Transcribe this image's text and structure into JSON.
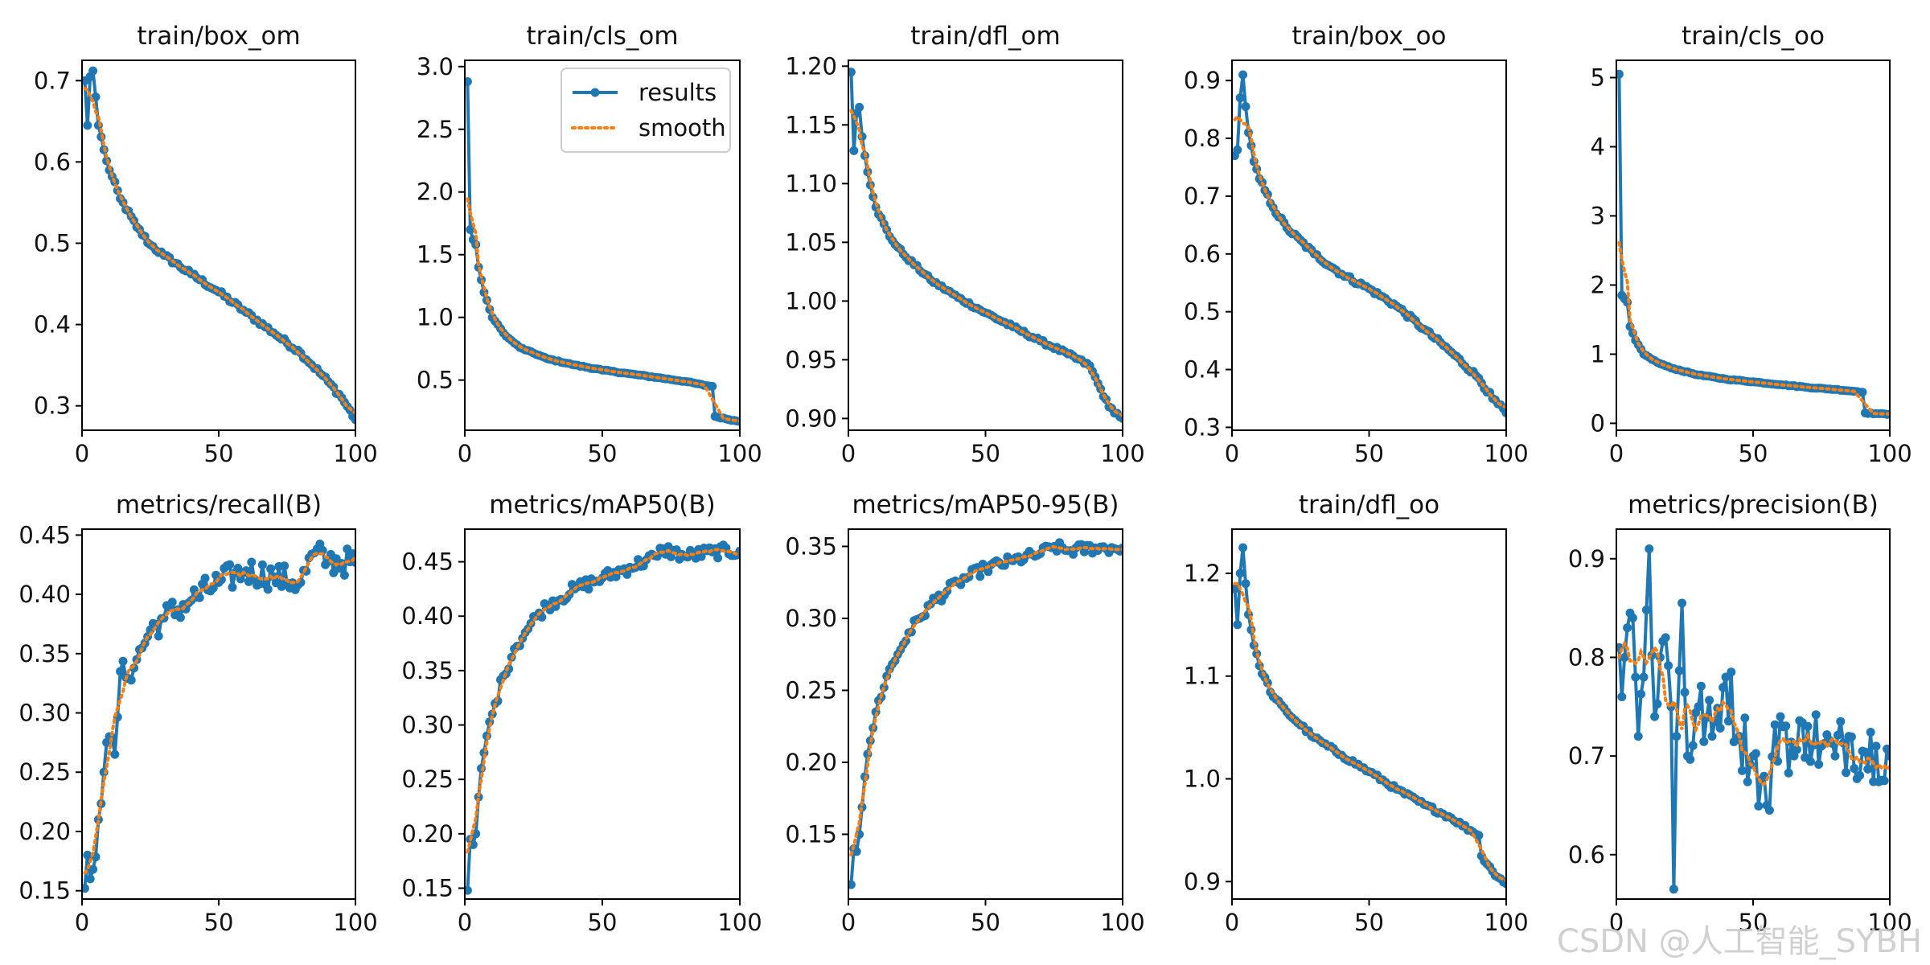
{
  "figure": {
    "legend_labels": {
      "results": "results",
      "smooth": "smooth"
    },
    "colors": {
      "results": "#1f77b4",
      "smooth": "#ff7f0e"
    },
    "watermark": "CSDN @人工智能_SYBH"
  },
  "chart_data": [
    {
      "type": "line",
      "title": "train/box_om",
      "xlim": [
        0,
        100
      ],
      "ylim": [
        0.27,
        0.725
      ],
      "xticks": [
        0,
        50,
        100
      ],
      "yticks": [
        0.3,
        0.4,
        0.5,
        0.6,
        0.7
      ],
      "ytick_labels": [
        "0.3",
        "0.4",
        "0.5",
        "0.6",
        "0.7"
      ],
      "legend": false,
      "kp": [
        [
          1,
          0.7
        ],
        [
          2,
          0.645
        ],
        [
          3,
          0.705
        ],
        [
          4,
          0.712
        ],
        [
          5,
          0.68
        ],
        [
          6,
          0.645
        ],
        [
          8,
          0.615
        ],
        [
          10,
          0.59
        ],
        [
          14,
          0.555
        ],
        [
          20,
          0.52
        ],
        [
          25,
          0.498
        ],
        [
          30,
          0.485
        ],
        [
          40,
          0.462
        ],
        [
          50,
          0.44
        ],
        [
          60,
          0.415
        ],
        [
          70,
          0.39
        ],
        [
          80,
          0.365
        ],
        [
          90,
          0.33
        ],
        [
          95,
          0.31
        ],
        [
          100,
          0.283
        ]
      ],
      "noise": 0.003
    },
    {
      "type": "line",
      "title": "train/cls_om",
      "xlim": [
        0,
        100
      ],
      "ylim": [
        0.1,
        3.05
      ],
      "xticks": [
        0,
        50,
        100
      ],
      "yticks": [
        0.5,
        1.0,
        1.5,
        2.0,
        2.5,
        3.0
      ],
      "ytick_labels": [
        "0.5",
        "1.0",
        "1.5",
        "2.0",
        "2.5",
        "3.0"
      ],
      "legend": true,
      "kp": [
        [
          1,
          2.88
        ],
        [
          2,
          1.7
        ],
        [
          3,
          1.62
        ],
        [
          4,
          1.58
        ],
        [
          5,
          1.4
        ],
        [
          7,
          1.2
        ],
        [
          10,
          1.0
        ],
        [
          15,
          0.85
        ],
        [
          20,
          0.76
        ],
        [
          30,
          0.67
        ],
        [
          40,
          0.62
        ],
        [
          50,
          0.58
        ],
        [
          60,
          0.55
        ],
        [
          70,
          0.52
        ],
        [
          80,
          0.49
        ],
        [
          88,
          0.455
        ],
        [
          90,
          0.45
        ],
        [
          91,
          0.21
        ],
        [
          95,
          0.19
        ],
        [
          100,
          0.17
        ]
      ],
      "noise": 0.004
    },
    {
      "type": "line",
      "title": "train/dfl_om",
      "xlim": [
        0,
        100
      ],
      "ylim": [
        0.89,
        1.205
      ],
      "xticks": [
        0,
        50,
        100
      ],
      "yticks": [
        0.9,
        0.95,
        1.0,
        1.05,
        1.1,
        1.15,
        1.2
      ],
      "ytick_labels": [
        "0.90",
        "0.95",
        "1.00",
        "1.05",
        "1.10",
        "1.15",
        "1.20"
      ],
      "legend": false,
      "kp": [
        [
          1,
          1.195
        ],
        [
          2,
          1.128
        ],
        [
          3,
          1.16
        ],
        [
          4,
          1.165
        ],
        [
          5,
          1.14
        ],
        [
          7,
          1.11
        ],
        [
          10,
          1.08
        ],
        [
          15,
          1.055
        ],
        [
          20,
          1.04
        ],
        [
          30,
          1.018
        ],
        [
          40,
          1.003
        ],
        [
          50,
          0.99
        ],
        [
          60,
          0.978
        ],
        [
          70,
          0.966
        ],
        [
          80,
          0.955
        ],
        [
          88,
          0.945
        ],
        [
          91,
          0.93
        ],
        [
          95,
          0.91
        ],
        [
          100,
          0.9
        ]
      ],
      "noise": 0.0015
    },
    {
      "type": "line",
      "title": "train/box_oo",
      "xlim": [
        0,
        100
      ],
      "ylim": [
        0.295,
        0.935
      ],
      "xticks": [
        0,
        50,
        100
      ],
      "yticks": [
        0.3,
        0.4,
        0.5,
        0.6,
        0.7,
        0.8,
        0.9
      ],
      "ytick_labels": [
        "0.3",
        "0.4",
        "0.5",
        "0.6",
        "0.7",
        "0.8",
        "0.9"
      ],
      "legend": false,
      "kp": [
        [
          1,
          0.77
        ],
        [
          2,
          0.78
        ],
        [
          3,
          0.87
        ],
        [
          4,
          0.91
        ],
        [
          5,
          0.855
        ],
        [
          6,
          0.81
        ],
        [
          8,
          0.76
        ],
        [
          10,
          0.73
        ],
        [
          15,
          0.68
        ],
        [
          20,
          0.645
        ],
        [
          30,
          0.6
        ],
        [
          40,
          0.565
        ],
        [
          50,
          0.54
        ],
        [
          60,
          0.51
        ],
        [
          70,
          0.47
        ],
        [
          80,
          0.43
        ],
        [
          90,
          0.385
        ],
        [
          95,
          0.35
        ],
        [
          100,
          0.325
        ]
      ],
      "noise": 0.004
    },
    {
      "type": "line",
      "title": "train/cls_oo",
      "xlim": [
        0,
        100
      ],
      "ylim": [
        -0.1,
        5.25
      ],
      "xticks": [
        0,
        50,
        100
      ],
      "yticks": [
        0,
        1,
        2,
        3,
        4,
        5
      ],
      "ytick_labels": [
        "0",
        "1",
        "2",
        "3",
        "4",
        "5"
      ],
      "legend": false,
      "kp": [
        [
          1,
          5.05
        ],
        [
          2,
          1.85
        ],
        [
          3,
          1.8
        ],
        [
          4,
          1.75
        ],
        [
          5,
          1.4
        ],
        [
          7,
          1.2
        ],
        [
          10,
          1.0
        ],
        [
          15,
          0.88
        ],
        [
          20,
          0.8
        ],
        [
          30,
          0.7
        ],
        [
          40,
          0.64
        ],
        [
          50,
          0.6
        ],
        [
          60,
          0.56
        ],
        [
          70,
          0.52
        ],
        [
          80,
          0.49
        ],
        [
          88,
          0.46
        ],
        [
          90,
          0.45
        ],
        [
          91,
          0.15
        ],
        [
          95,
          0.14
        ],
        [
          100,
          0.13
        ]
      ],
      "noise": 0.006
    },
    {
      "type": "line",
      "title": "metrics/recall(B)",
      "xlim": [
        0,
        100
      ],
      "ylim": [
        0.143,
        0.455
      ],
      "xticks": [
        0,
        50,
        100
      ],
      "yticks": [
        0.15,
        0.2,
        0.25,
        0.3,
        0.35,
        0.4,
        0.45
      ],
      "ytick_labels": [
        "0.15",
        "0.20",
        "0.25",
        "0.30",
        "0.35",
        "0.40",
        "0.45"
      ],
      "legend": false,
      "kp": [
        [
          1,
          0.152
        ],
        [
          2,
          0.18
        ],
        [
          3,
          0.16
        ],
        [
          4,
          0.168
        ],
        [
          6,
          0.21
        ],
        [
          8,
          0.25
        ],
        [
          10,
          0.28
        ],
        [
          12,
          0.265
        ],
        [
          14,
          0.335
        ],
        [
          16,
          0.33
        ],
        [
          20,
          0.345
        ],
        [
          25,
          0.37
        ],
        [
          30,
          0.38
        ],
        [
          40,
          0.395
        ],
        [
          50,
          0.41
        ],
        [
          60,
          0.42
        ],
        [
          70,
          0.415
        ],
        [
          80,
          0.41
        ],
        [
          85,
          0.435
        ],
        [
          90,
          0.428
        ],
        [
          100,
          0.427
        ]
      ],
      "noise": 0.012
    },
    {
      "type": "line",
      "title": "metrics/mAP50(B)",
      "xlim": [
        0,
        100
      ],
      "ylim": [
        0.14,
        0.48
      ],
      "xticks": [
        0,
        50,
        100
      ],
      "yticks": [
        0.15,
        0.2,
        0.25,
        0.3,
        0.35,
        0.4,
        0.45
      ],
      "ytick_labels": [
        "0.15",
        "0.20",
        "0.25",
        "0.30",
        "0.35",
        "0.40",
        "0.45"
      ],
      "legend": false,
      "kp": [
        [
          1,
          0.148
        ],
        [
          2,
          0.195
        ],
        [
          3,
          0.19
        ],
        [
          4,
          0.2
        ],
        [
          6,
          0.26
        ],
        [
          8,
          0.29
        ],
        [
          10,
          0.31
        ],
        [
          14,
          0.345
        ],
        [
          18,
          0.37
        ],
        [
          22,
          0.385
        ],
        [
          26,
          0.4
        ],
        [
          30,
          0.41
        ],
        [
          40,
          0.425
        ],
        [
          50,
          0.435
        ],
        [
          60,
          0.445
        ],
        [
          70,
          0.455
        ],
        [
          72,
          0.462
        ],
        [
          80,
          0.455
        ],
        [
          90,
          0.459
        ],
        [
          100,
          0.46
        ]
      ],
      "noise": 0.006
    },
    {
      "type": "line",
      "title": "metrics/mAP50-95(B)",
      "xlim": [
        0,
        100
      ],
      "ylim": [
        0.105,
        0.362
      ],
      "xticks": [
        0,
        50,
        100
      ],
      "yticks": [
        0.15,
        0.2,
        0.25,
        0.3,
        0.35
      ],
      "ytick_labels": [
        "0.15",
        "0.20",
        "0.25",
        "0.30",
        "0.35"
      ],
      "legend": false,
      "kp": [
        [
          1,
          0.115
        ],
        [
          2,
          0.14
        ],
        [
          3,
          0.138
        ],
        [
          4,
          0.15
        ],
        [
          6,
          0.19
        ],
        [
          8,
          0.215
        ],
        [
          10,
          0.235
        ],
        [
          14,
          0.26
        ],
        [
          18,
          0.275
        ],
        [
          22,
          0.29
        ],
        [
          26,
          0.3
        ],
        [
          30,
          0.31
        ],
        [
          40,
          0.325
        ],
        [
          50,
          0.335
        ],
        [
          60,
          0.34
        ],
        [
          70,
          0.345
        ],
        [
          75,
          0.35
        ],
        [
          80,
          0.347
        ],
        [
          90,
          0.349
        ],
        [
          100,
          0.349
        ]
      ],
      "noise": 0.004
    },
    {
      "type": "line",
      "title": "train/dfl_oo",
      "xlim": [
        0,
        100
      ],
      "ylim": [
        0.883,
        1.243
      ],
      "xticks": [
        0,
        50,
        100
      ],
      "yticks": [
        0.9,
        1.0,
        1.1,
        1.2
      ],
      "ytick_labels": [
        "0.9",
        "1.0",
        "1.1",
        "1.2"
      ],
      "legend": false,
      "kp": [
        [
          1,
          1.185
        ],
        [
          2,
          1.15
        ],
        [
          3,
          1.2
        ],
        [
          4,
          1.225
        ],
        [
          5,
          1.19
        ],
        [
          6,
          1.16
        ],
        [
          8,
          1.13
        ],
        [
          10,
          1.11
        ],
        [
          15,
          1.08
        ],
        [
          20,
          1.065
        ],
        [
          30,
          1.04
        ],
        [
          40,
          1.023
        ],
        [
          50,
          1.007
        ],
        [
          60,
          0.99
        ],
        [
          70,
          0.975
        ],
        [
          80,
          0.962
        ],
        [
          88,
          0.948
        ],
        [
          90,
          0.945
        ],
        [
          91,
          0.925
        ],
        [
          95,
          0.91
        ],
        [
          100,
          0.898
        ]
      ],
      "noise": 0.002
    },
    {
      "type": "line",
      "title": "metrics/precision(B)",
      "xlim": [
        0,
        100
      ],
      "ylim": [
        0.555,
        0.93
      ],
      "xticks": [
        0,
        50,
        100
      ],
      "yticks": [
        0.6,
        0.7,
        0.8,
        0.9
      ],
      "ytick_labels": [
        "0.6",
        "0.7",
        "0.8",
        "0.9"
      ],
      "legend": false,
      "kp": [
        [
          1,
          0.81
        ],
        [
          2,
          0.76
        ],
        [
          3,
          0.8
        ],
        [
          4,
          0.83
        ],
        [
          5,
          0.845
        ],
        [
          6,
          0.84
        ],
        [
          8,
          0.72
        ],
        [
          10,
          0.78
        ],
        [
          12,
          0.91
        ],
        [
          14,
          0.74
        ],
        [
          16,
          0.8
        ],
        [
          18,
          0.82
        ],
        [
          20,
          0.75
        ],
        [
          21,
          0.565
        ],
        [
          22,
          0.72
        ],
        [
          24,
          0.855
        ],
        [
          26,
          0.7
        ],
        [
          30,
          0.75
        ],
        [
          35,
          0.72
        ],
        [
          40,
          0.78
        ],
        [
          45,
          0.72
        ],
        [
          50,
          0.7
        ],
        [
          55,
          0.65
        ],
        [
          60,
          0.74
        ],
        [
          65,
          0.7
        ],
        [
          70,
          0.73
        ],
        [
          75,
          0.71
        ],
        [
          80,
          0.7
        ],
        [
          85,
          0.72
        ],
        [
          90,
          0.705
        ],
        [
          95,
          0.71
        ],
        [
          100,
          0.7
        ]
      ],
      "noise": 0.035
    }
  ]
}
